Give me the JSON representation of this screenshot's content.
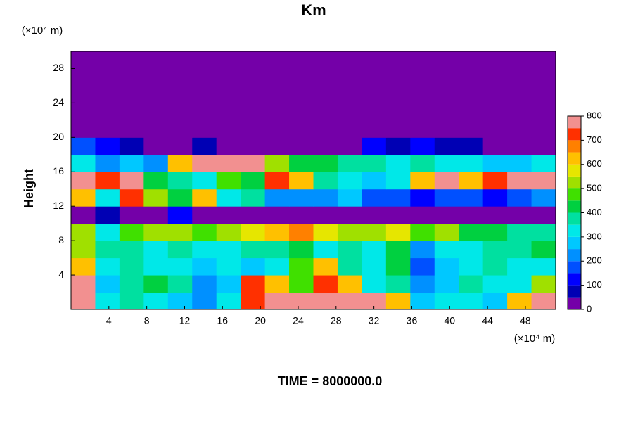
{
  "chart_data": {
    "type": "heatmap",
    "title": "Km",
    "ylabel": "Height",
    "x_unit": "(×10⁴ m)",
    "y_unit": "(×10⁴ m)",
    "footer": "TIME = 8000000.0",
    "xlim": [
      0,
      51.2
    ],
    "ylim": [
      0,
      30
    ],
    "xticks": [
      4,
      8,
      12,
      16,
      20,
      24,
      28,
      32,
      36,
      40,
      44,
      48
    ],
    "yticks": [
      4,
      8,
      12,
      16,
      20,
      24,
      28
    ],
    "xbins": [
      0,
      2.56,
      5.12,
      7.68,
      10.24,
      12.8,
      15.36,
      17.92,
      20.48,
      23.04,
      25.6,
      28.16,
      30.72,
      33.28,
      35.84,
      38.4,
      40.96,
      43.52,
      46.08,
      48.64,
      51.2
    ],
    "ybins": [
      0,
      2,
      4,
      6,
      8,
      10,
      12,
      14,
      16,
      18,
      20,
      22,
      24,
      26,
      28,
      30
    ],
    "z": [
      [
        800,
        300,
        350,
        300,
        250,
        200,
        300,
        700,
        800,
        800,
        750,
        800,
        800,
        600,
        250,
        300,
        300,
        250,
        600,
        800
      ],
      [
        800,
        250,
        350,
        400,
        350,
        200,
        250,
        700,
        600,
        450,
        700,
        600,
        300,
        350,
        200,
        250,
        350,
        300,
        300,
        500
      ],
      [
        600,
        300,
        350,
        300,
        300,
        250,
        300,
        250,
        300,
        450,
        600,
        350,
        300,
        400,
        150,
        250,
        300,
        350,
        300,
        300
      ],
      [
        500,
        350,
        350,
        300,
        350,
        300,
        300,
        350,
        350,
        400,
        300,
        350,
        300,
        400,
        200,
        300,
        300,
        350,
        350,
        400
      ],
      [
        500,
        300,
        450,
        500,
        500,
        450,
        500,
        550,
        600,
        650,
        550,
        500,
        500,
        550,
        450,
        500,
        400,
        400,
        350,
        350
      ],
      [
        0,
        50,
        0,
        0,
        100,
        0,
        0,
        0,
        0,
        0,
        0,
        0,
        0,
        0,
        0,
        0,
        0,
        0,
        0,
        0
      ],
      [
        600,
        300,
        700,
        500,
        400,
        600,
        300,
        350,
        200,
        200,
        200,
        250,
        150,
        150,
        100,
        150,
        150,
        100,
        150,
        200
      ],
      [
        800,
        700,
        800,
        400,
        350,
        300,
        450,
        400,
        700,
        600,
        350,
        300,
        250,
        300,
        600,
        800,
        600,
        700,
        800,
        800
      ],
      [
        300,
        200,
        250,
        200,
        600,
        800,
        800,
        800,
        500,
        400,
        400,
        350,
        350,
        300,
        350,
        300,
        300,
        250,
        250,
        300
      ],
      [
        150,
        100,
        50,
        0,
        0,
        50,
        0,
        0,
        0,
        0,
        0,
        0,
        100,
        50,
        100,
        50,
        50,
        0,
        0,
        0
      ],
      [
        0,
        0,
        0,
        0,
        0,
        0,
        0,
        0,
        0,
        0,
        0,
        0,
        0,
        0,
        0,
        0,
        0,
        0,
        0,
        0
      ],
      [
        0,
        0,
        0,
        0,
        0,
        0,
        0,
        0,
        0,
        0,
        0,
        0,
        0,
        0,
        0,
        0,
        0,
        0,
        0,
        0
      ],
      [
        0,
        0,
        0,
        0,
        0,
        0,
        0,
        0,
        0,
        0,
        0,
        0,
        0,
        0,
        0,
        0,
        0,
        0,
        0,
        0
      ],
      [
        0,
        0,
        0,
        0,
        0,
        0,
        0,
        0,
        0,
        0,
        0,
        0,
        0,
        0,
        0,
        0,
        0,
        0,
        0,
        0
      ],
      [
        0,
        0,
        0,
        0,
        0,
        0,
        0,
        0,
        0,
        0,
        0,
        0,
        0,
        0,
        0,
        0,
        0,
        0,
        0,
        0
      ]
    ],
    "colorbar": {
      "lim": [
        0,
        800
      ],
      "ticks": [
        0,
        100,
        200,
        300,
        400,
        500,
        600,
        700,
        800
      ],
      "colors": [
        "#7400a8",
        "#0000b4",
        "#0000ff",
        "#0050ff",
        "#0090ff",
        "#00c8ff",
        "#00e8e8",
        "#00e0a0",
        "#00d040",
        "#40e000",
        "#a0e000",
        "#e6e600",
        "#ffc000",
        "#ff8000",
        "#ff3000",
        "#f29090"
      ]
    }
  }
}
